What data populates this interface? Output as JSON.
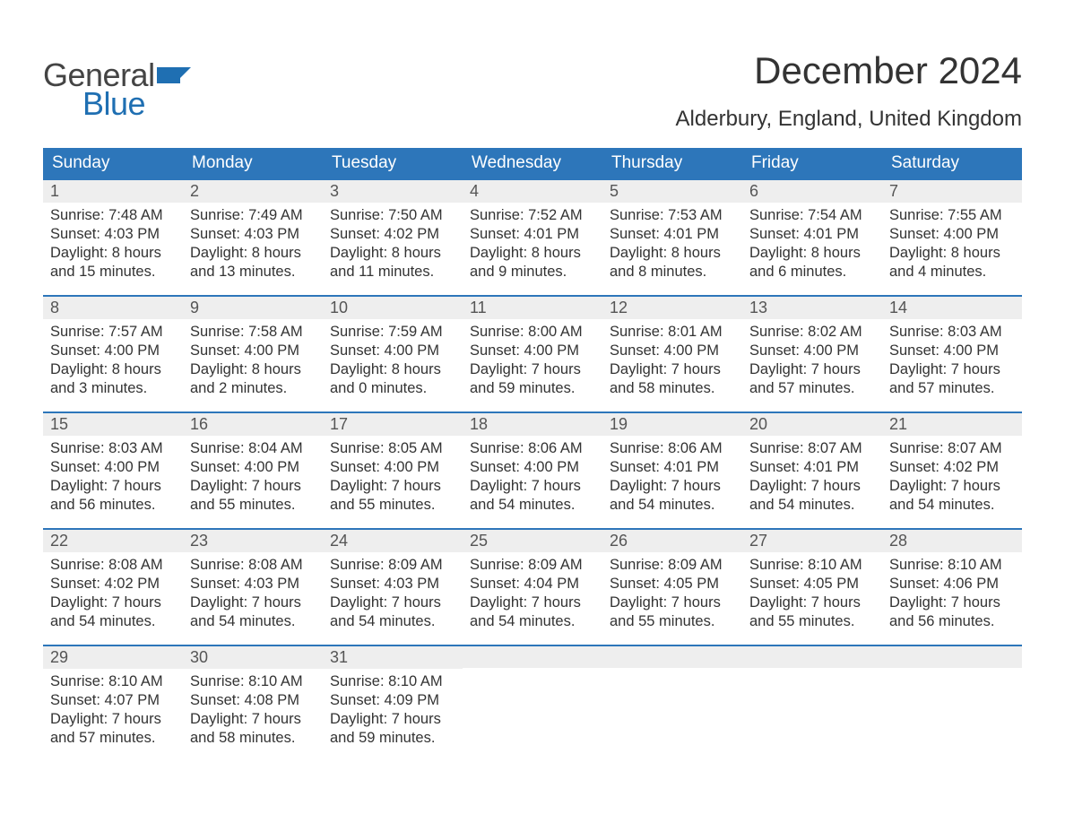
{
  "logo": {
    "text1": "General",
    "text2": "Blue",
    "flag_color": "#1f6fb2"
  },
  "title": "December 2024",
  "location": "Alderbury, England, United Kingdom",
  "colors": {
    "header_bg": "#2d76ba",
    "header_text": "#ffffff",
    "daynum_bg": "#eeeeee",
    "rule": "#2d76ba",
    "body_text": "#333333",
    "logo_gray": "#444444",
    "logo_blue": "#1f6fb2"
  },
  "weekdays": [
    "Sunday",
    "Monday",
    "Tuesday",
    "Wednesday",
    "Thursday",
    "Friday",
    "Saturday"
  ],
  "weeks": [
    [
      {
        "n": "1",
        "sunrise": "Sunrise: 7:48 AM",
        "sunset": "Sunset: 4:03 PM",
        "d1": "Daylight: 8 hours",
        "d2": "and 15 minutes."
      },
      {
        "n": "2",
        "sunrise": "Sunrise: 7:49 AM",
        "sunset": "Sunset: 4:03 PM",
        "d1": "Daylight: 8 hours",
        "d2": "and 13 minutes."
      },
      {
        "n": "3",
        "sunrise": "Sunrise: 7:50 AM",
        "sunset": "Sunset: 4:02 PM",
        "d1": "Daylight: 8 hours",
        "d2": "and 11 minutes."
      },
      {
        "n": "4",
        "sunrise": "Sunrise: 7:52 AM",
        "sunset": "Sunset: 4:01 PM",
        "d1": "Daylight: 8 hours",
        "d2": "and 9 minutes."
      },
      {
        "n": "5",
        "sunrise": "Sunrise: 7:53 AM",
        "sunset": "Sunset: 4:01 PM",
        "d1": "Daylight: 8 hours",
        "d2": "and 8 minutes."
      },
      {
        "n": "6",
        "sunrise": "Sunrise: 7:54 AM",
        "sunset": "Sunset: 4:01 PM",
        "d1": "Daylight: 8 hours",
        "d2": "and 6 minutes."
      },
      {
        "n": "7",
        "sunrise": "Sunrise: 7:55 AM",
        "sunset": "Sunset: 4:00 PM",
        "d1": "Daylight: 8 hours",
        "d2": "and 4 minutes."
      }
    ],
    [
      {
        "n": "8",
        "sunrise": "Sunrise: 7:57 AM",
        "sunset": "Sunset: 4:00 PM",
        "d1": "Daylight: 8 hours",
        "d2": "and 3 minutes."
      },
      {
        "n": "9",
        "sunrise": "Sunrise: 7:58 AM",
        "sunset": "Sunset: 4:00 PM",
        "d1": "Daylight: 8 hours",
        "d2": "and 2 minutes."
      },
      {
        "n": "10",
        "sunrise": "Sunrise: 7:59 AM",
        "sunset": "Sunset: 4:00 PM",
        "d1": "Daylight: 8 hours",
        "d2": "and 0 minutes."
      },
      {
        "n": "11",
        "sunrise": "Sunrise: 8:00 AM",
        "sunset": "Sunset: 4:00 PM",
        "d1": "Daylight: 7 hours",
        "d2": "and 59 minutes."
      },
      {
        "n": "12",
        "sunrise": "Sunrise: 8:01 AM",
        "sunset": "Sunset: 4:00 PM",
        "d1": "Daylight: 7 hours",
        "d2": "and 58 minutes."
      },
      {
        "n": "13",
        "sunrise": "Sunrise: 8:02 AM",
        "sunset": "Sunset: 4:00 PM",
        "d1": "Daylight: 7 hours",
        "d2": "and 57 minutes."
      },
      {
        "n": "14",
        "sunrise": "Sunrise: 8:03 AM",
        "sunset": "Sunset: 4:00 PM",
        "d1": "Daylight: 7 hours",
        "d2": "and 57 minutes."
      }
    ],
    [
      {
        "n": "15",
        "sunrise": "Sunrise: 8:03 AM",
        "sunset": "Sunset: 4:00 PM",
        "d1": "Daylight: 7 hours",
        "d2": "and 56 minutes."
      },
      {
        "n": "16",
        "sunrise": "Sunrise: 8:04 AM",
        "sunset": "Sunset: 4:00 PM",
        "d1": "Daylight: 7 hours",
        "d2": "and 55 minutes."
      },
      {
        "n": "17",
        "sunrise": "Sunrise: 8:05 AM",
        "sunset": "Sunset: 4:00 PM",
        "d1": "Daylight: 7 hours",
        "d2": "and 55 minutes."
      },
      {
        "n": "18",
        "sunrise": "Sunrise: 8:06 AM",
        "sunset": "Sunset: 4:00 PM",
        "d1": "Daylight: 7 hours",
        "d2": "and 54 minutes."
      },
      {
        "n": "19",
        "sunrise": "Sunrise: 8:06 AM",
        "sunset": "Sunset: 4:01 PM",
        "d1": "Daylight: 7 hours",
        "d2": "and 54 minutes."
      },
      {
        "n": "20",
        "sunrise": "Sunrise: 8:07 AM",
        "sunset": "Sunset: 4:01 PM",
        "d1": "Daylight: 7 hours",
        "d2": "and 54 minutes."
      },
      {
        "n": "21",
        "sunrise": "Sunrise: 8:07 AM",
        "sunset": "Sunset: 4:02 PM",
        "d1": "Daylight: 7 hours",
        "d2": "and 54 minutes."
      }
    ],
    [
      {
        "n": "22",
        "sunrise": "Sunrise: 8:08 AM",
        "sunset": "Sunset: 4:02 PM",
        "d1": "Daylight: 7 hours",
        "d2": "and 54 minutes."
      },
      {
        "n": "23",
        "sunrise": "Sunrise: 8:08 AM",
        "sunset": "Sunset: 4:03 PM",
        "d1": "Daylight: 7 hours",
        "d2": "and 54 minutes."
      },
      {
        "n": "24",
        "sunrise": "Sunrise: 8:09 AM",
        "sunset": "Sunset: 4:03 PM",
        "d1": "Daylight: 7 hours",
        "d2": "and 54 minutes."
      },
      {
        "n": "25",
        "sunrise": "Sunrise: 8:09 AM",
        "sunset": "Sunset: 4:04 PM",
        "d1": "Daylight: 7 hours",
        "d2": "and 54 minutes."
      },
      {
        "n": "26",
        "sunrise": "Sunrise: 8:09 AM",
        "sunset": "Sunset: 4:05 PM",
        "d1": "Daylight: 7 hours",
        "d2": "and 55 minutes."
      },
      {
        "n": "27",
        "sunrise": "Sunrise: 8:10 AM",
        "sunset": "Sunset: 4:05 PM",
        "d1": "Daylight: 7 hours",
        "d2": "and 55 minutes."
      },
      {
        "n": "28",
        "sunrise": "Sunrise: 8:10 AM",
        "sunset": "Sunset: 4:06 PM",
        "d1": "Daylight: 7 hours",
        "d2": "and 56 minutes."
      }
    ],
    [
      {
        "n": "29",
        "sunrise": "Sunrise: 8:10 AM",
        "sunset": "Sunset: 4:07 PM",
        "d1": "Daylight: 7 hours",
        "d2": "and 57 minutes."
      },
      {
        "n": "30",
        "sunrise": "Sunrise: 8:10 AM",
        "sunset": "Sunset: 4:08 PM",
        "d1": "Daylight: 7 hours",
        "d2": "and 58 minutes."
      },
      {
        "n": "31",
        "sunrise": "Sunrise: 8:10 AM",
        "sunset": "Sunset: 4:09 PM",
        "d1": "Daylight: 7 hours",
        "d2": "and 59 minutes."
      },
      null,
      null,
      null,
      null
    ]
  ]
}
